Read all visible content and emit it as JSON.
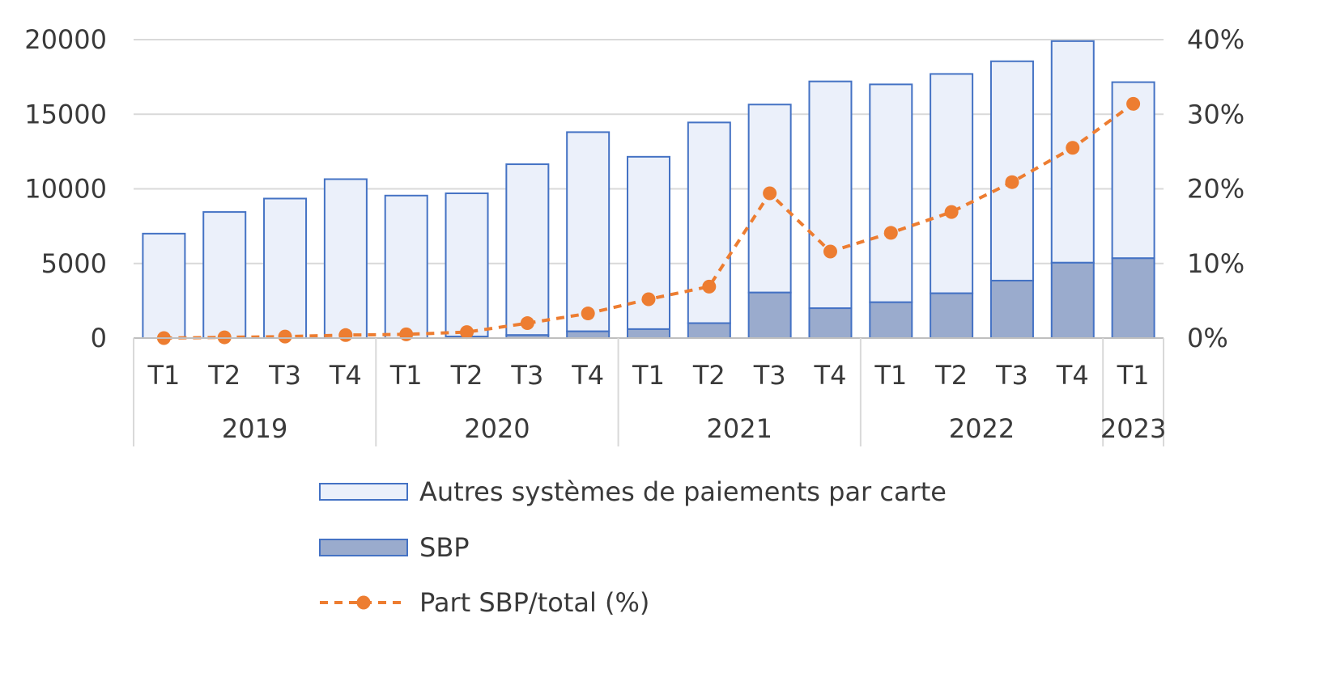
{
  "chart_data": {
    "type": "bar",
    "stacked": true,
    "categories": [
      "T1",
      "T2",
      "T3",
      "T4",
      "T1",
      "T2",
      "T3",
      "T4",
      "T1",
      "T2",
      "T3",
      "T4",
      "T1",
      "T2",
      "T3",
      "T4",
      "T1"
    ],
    "groups": [
      {
        "label": "2019",
        "count": 4
      },
      {
        "label": "2020",
        "count": 4
      },
      {
        "label": "2021",
        "count": 4
      },
      {
        "label": "2022",
        "count": 4
      },
      {
        "label": "2023",
        "count": 1
      }
    ],
    "series": [
      {
        "name": "SBP",
        "type": "bar",
        "color": "#9aabcd",
        "edge": "#4472c4",
        "values": [
          0,
          0,
          0,
          0,
          0,
          100,
          200,
          450,
          600,
          1000,
          3050,
          2000,
          2400,
          3000,
          3850,
          5050,
          5350
        ]
      },
      {
        "name": "Autres systèmes de paiements par carte",
        "type": "bar",
        "color": "#ebf0fa",
        "edge": "#4472c4",
        "values": [
          7000,
          8450,
          9350,
          10650,
          9550,
          9600,
          11450,
          13350,
          11550,
          13450,
          12600,
          15200,
          14600,
          14700,
          14700,
          14850,
          11800
        ]
      },
      {
        "name": "Part SBP/total (%)",
        "type": "line",
        "axis": "right",
        "color": "#ed7d31",
        "values": [
          0,
          0.1,
          0.2,
          0.4,
          0.5,
          0.8,
          2.0,
          3.3,
          5.2,
          6.9,
          19.4,
          11.6,
          14.1,
          16.9,
          20.9,
          25.5,
          31.4
        ]
      }
    ],
    "y_left": {
      "min": 0,
      "max": 20000,
      "ticks": [
        "0",
        "5000",
        "10000",
        "15000",
        "20000"
      ]
    },
    "y_right": {
      "min": 0,
      "max": 40,
      "ticks": [
        "0%",
        "10%",
        "20%",
        "30%",
        "40%"
      ]
    },
    "grid": true,
    "legend_position": "bottom",
    "title": "",
    "xlabel": "",
    "ylabel": ""
  }
}
